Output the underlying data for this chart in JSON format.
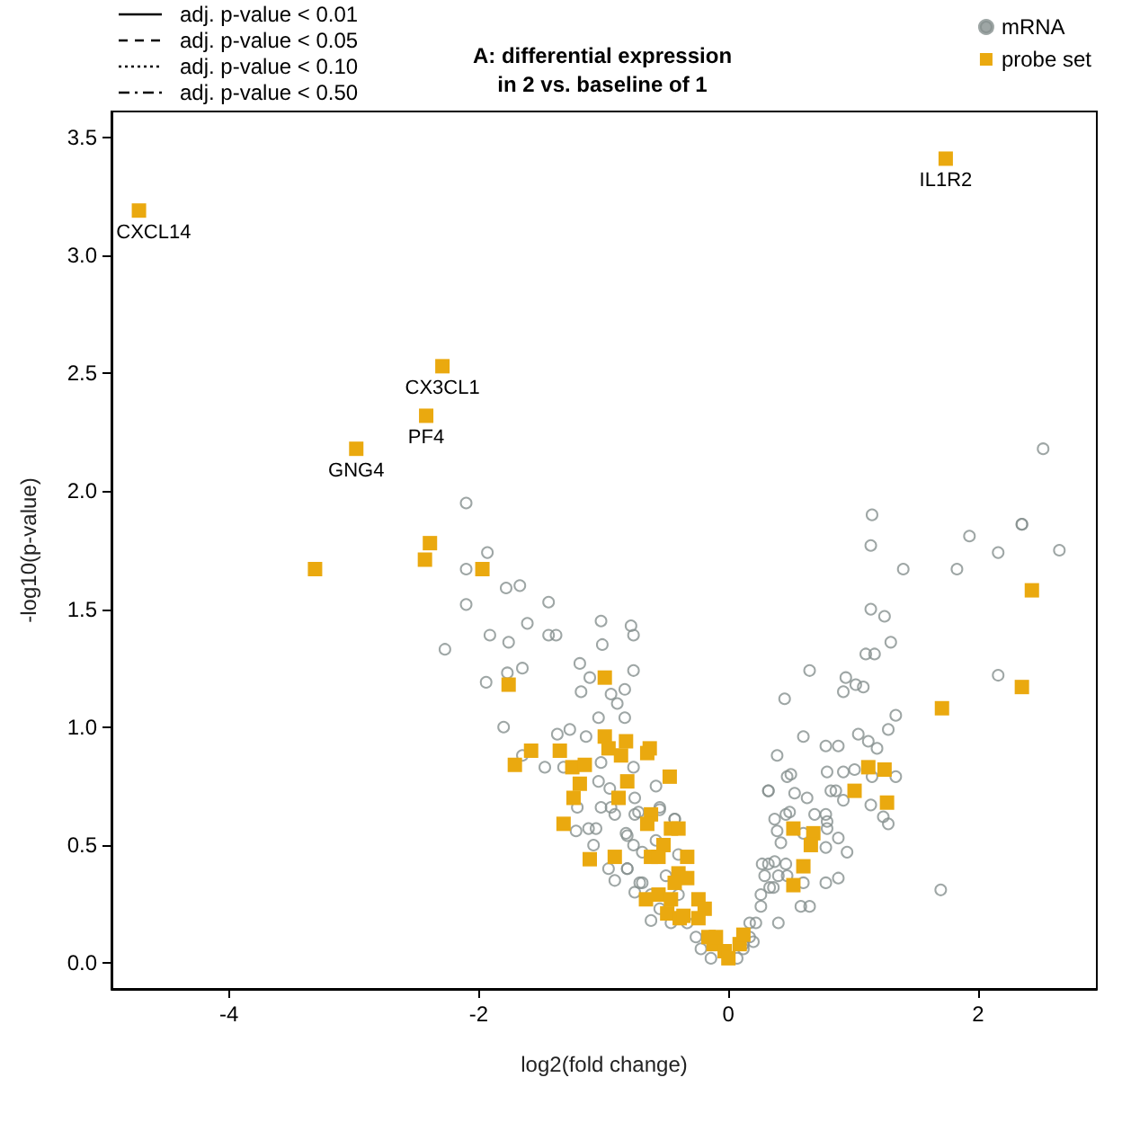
{
  "chart_data": {
    "type": "scatter",
    "title": "A: differential expression\nin 2 vs. baseline of 1",
    "xlabel": "log2(fold change)",
    "ylabel": "-log10(p-value)",
    "xlim": [
      -4.94,
      2.95
    ],
    "xticks": [
      -4,
      -2,
      0,
      2
    ],
    "ylim": [
      -0.11,
      3.61
    ],
    "yticks": [
      {
        "value": 0,
        "label": "0.0"
      },
      0.5,
      {
        "value": 1,
        "label": "1.0"
      },
      1.5,
      {
        "value": 2,
        "label": "2.0"
      },
      2.5,
      {
        "value": 3,
        "label": "3.0"
      },
      3.5
    ],
    "grid": false,
    "legend": "top",
    "series": [
      {
        "name": "adj. p-value < 0.01",
        "type": "line",
        "line_style": "solid",
        "color": "#000000"
      },
      {
        "name": "adj. p-value < 0.05",
        "type": "line",
        "line_style": "dashed",
        "color": "#000000"
      },
      {
        "name": "adj. p-value < 0.10",
        "type": "line",
        "line_style": "dotted",
        "color": "#000000"
      },
      {
        "name": "adj. p-value < 0.50",
        "type": "line",
        "line_style": "dashdot",
        "color": "#000000"
      },
      {
        "name": "mRNA",
        "marker": "circle",
        "color": "#86908f",
        "x": [
          -1.93,
          -2.1,
          -1.78,
          -1.67,
          -1.44,
          -2.1,
          -1.61,
          -1.91,
          -1.76,
          -1.44,
          -1.38,
          -2.27,
          -1.02,
          -0.78,
          -0.76,
          -1.01,
          -1.19,
          -0.76,
          -1.77,
          -1.65,
          -1.94,
          -1.11,
          -1.18,
          -0.94,
          -0.83,
          -0.89,
          -1.04,
          -0.83,
          -1.8,
          -1.37,
          -1.27,
          -1.14,
          -1.65,
          -1.47,
          -1.32,
          -1.02,
          -0.76,
          -1.04,
          -0.95,
          -0.75,
          -1.02,
          -0.91,
          -1.21,
          -0.72,
          -0.55,
          -0.58,
          -1.12,
          -1.06,
          -1.22,
          -1.08,
          -0.81,
          -0.76,
          -0.96,
          -0.91,
          -0.81,
          -0.75,
          -0.62,
          -0.43,
          -0.69,
          -2.1,
          1.14,
          1.93,
          2.35,
          2.16,
          2.65,
          1.4,
          1.83,
          1.14,
          1.25,
          1.3,
          1.1,
          1.17,
          0.65,
          0.94,
          1.02,
          1.08,
          0.92,
          0.45,
          2.16,
          1.34,
          1.28,
          1.04,
          1.12,
          1.19,
          0.6,
          0.39,
          0.78,
          0.88,
          0.79,
          0.92,
          1.01,
          1.15,
          1.34,
          0.47,
          0.32,
          0.53,
          0.86,
          0.63,
          0.92,
          1.14,
          1.24,
          1.28,
          0.49,
          0.69,
          0.78,
          0.79,
          0.37,
          0.39,
          0.88,
          0.78,
          0.95,
          0.88,
          0.78,
          1.7,
          0.42,
          0.27,
          0.37,
          0.29,
          0.58,
          0.65,
          0.4,
          0.26,
          0.17,
          0.2,
          0.12,
          0.33,
          0.47,
          0.6,
          2.52,
          1.15,
          2.35,
          -0.94,
          -0.81,
          -0.71,
          -0.62,
          -0.55,
          -0.46,
          -0.33,
          -0.26,
          -0.22,
          -0.14,
          0.17,
          0.22,
          0.36,
          0.4,
          0.46,
          0.32,
          0.26,
          0.12,
          0.07,
          -0.5,
          -0.4,
          -0.69,
          -0.58,
          -0.4,
          -0.75,
          -0.55,
          -0.43,
          -0.82,
          0.46,
          0.6,
          0.79,
          0.82,
          0.5,
          0.32
        ],
        "values": [
          1.74,
          1.67,
          1.59,
          1.6,
          1.53,
          1.52,
          1.44,
          1.39,
          1.36,
          1.39,
          1.39,
          1.33,
          1.45,
          1.43,
          1.39,
          1.35,
          1.27,
          1.24,
          1.23,
          1.25,
          1.19,
          1.21,
          1.15,
          1.14,
          1.16,
          1.1,
          1.04,
          1.04,
          1.0,
          0.97,
          0.99,
          0.96,
          0.88,
          0.83,
          0.83,
          0.85,
          0.83,
          0.77,
          0.74,
          0.7,
          0.66,
          0.63,
          0.66,
          0.64,
          0.66,
          0.75,
          0.57,
          0.57,
          0.56,
          0.5,
          0.54,
          0.5,
          0.4,
          0.35,
          0.4,
          0.3,
          0.18,
          0.61,
          0.34,
          1.95,
          1.77,
          1.81,
          1.86,
          1.74,
          1.75,
          1.67,
          1.67,
          1.5,
          1.47,
          1.36,
          1.31,
          1.31,
          1.24,
          1.21,
          1.18,
          1.17,
          1.15,
          1.12,
          1.22,
          1.05,
          0.99,
          0.97,
          0.94,
          0.91,
          0.96,
          0.88,
          0.92,
          0.92,
          0.81,
          0.81,
          0.82,
          0.79,
          0.79,
          0.79,
          0.73,
          0.72,
          0.73,
          0.7,
          0.69,
          0.67,
          0.62,
          0.59,
          0.64,
          0.63,
          0.63,
          0.6,
          0.61,
          0.56,
          0.53,
          0.49,
          0.47,
          0.36,
          0.34,
          0.31,
          0.51,
          0.42,
          0.43,
          0.37,
          0.24,
          0.24,
          0.17,
          0.24,
          0.17,
          0.09,
          0.08,
          0.32,
          0.37,
          0.34,
          2.18,
          1.9,
          1.86,
          0.66,
          0.4,
          0.34,
          0.29,
          0.23,
          0.17,
          0.17,
          0.11,
          0.06,
          0.02,
          0.11,
          0.17,
          0.32,
          0.37,
          0.42,
          0.42,
          0.29,
          0.06,
          0.02,
          0.37,
          0.29,
          0.47,
          0.52,
          0.46,
          0.63,
          0.65,
          0.61,
          0.55,
          0.63,
          0.55,
          0.57,
          0.73,
          0.8,
          0.73
        ]
      },
      {
        "name": "probe set",
        "marker": "square",
        "color": "#eaa90f",
        "x": [
          -4.72,
          1.74,
          -2.29,
          -2.42,
          -2.98,
          -3.31,
          -2.39,
          -2.43,
          -1.97,
          -1.76,
          2.43,
          2.35,
          1.71,
          -0.99,
          -1.58,
          -1.71,
          -1.35,
          -0.99,
          -0.96,
          -0.82,
          -0.86,
          -0.63,
          -0.65,
          -1.25,
          -1.15,
          -1.19,
          -0.81,
          -0.47,
          -1.24,
          -0.88,
          -0.62,
          -0.65,
          -0.46,
          -0.4,
          -1.32,
          -0.52,
          -0.91,
          -1.11,
          -0.62,
          -0.56,
          -0.4,
          -0.43,
          -0.56,
          -0.66,
          -0.46,
          -0.49,
          -0.39,
          1.12,
          1.25,
          1.01,
          1.27,
          0.52,
          0.68,
          0.66,
          0.6,
          0.52,
          -0.33,
          -0.33,
          -0.36,
          -0.24,
          -0.19,
          -0.16,
          -0.12,
          -0.03,
          0.0,
          0.09,
          0.12,
          -0.24,
          -0.1
        ],
        "values": [
          3.19,
          3.41,
          2.53,
          2.32,
          2.18,
          1.67,
          1.78,
          1.71,
          1.67,
          1.18,
          1.58,
          1.17,
          1.08,
          1.21,
          0.9,
          0.84,
          0.9,
          0.96,
          0.91,
          0.94,
          0.88,
          0.91,
          0.89,
          0.83,
          0.84,
          0.76,
          0.77,
          0.79,
          0.7,
          0.7,
          0.63,
          0.59,
          0.57,
          0.57,
          0.59,
          0.5,
          0.45,
          0.44,
          0.45,
          0.45,
          0.38,
          0.34,
          0.29,
          0.27,
          0.27,
          0.21,
          0.19,
          0.83,
          0.82,
          0.73,
          0.68,
          0.57,
          0.55,
          0.5,
          0.41,
          0.33,
          0.45,
          0.36,
          0.2,
          0.27,
          0.23,
          0.11,
          0.08,
          0.05,
          0.02,
          0.08,
          0.12,
          0.19,
          0.11
        ]
      }
    ],
    "annotations": [
      {
        "text": "CXCL14",
        "x": -4.72,
        "y": 3.19
      },
      {
        "text": "IL1R2",
        "x": 1.74,
        "y": 3.41
      },
      {
        "text": "CX3CL1",
        "x": -2.29,
        "y": 2.53
      },
      {
        "text": "PF4",
        "x": -2.42,
        "y": 2.32
      },
      {
        "text": "GNG4",
        "x": -2.98,
        "y": 2.18
      }
    ]
  }
}
